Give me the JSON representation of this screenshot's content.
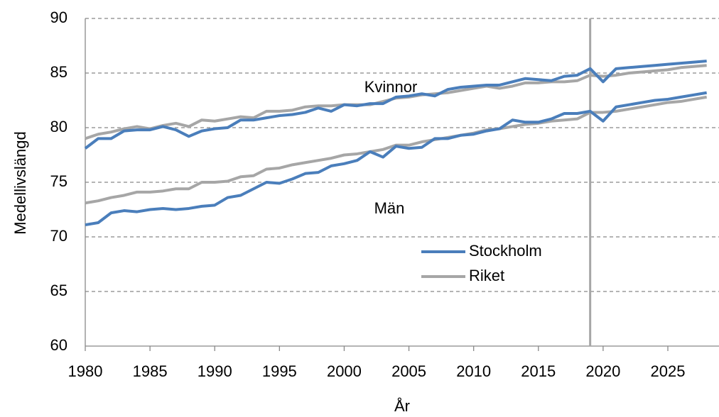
{
  "chart_data": {
    "type": "line",
    "ylabel": "Medellivslängd",
    "xlabel": "År",
    "annotations": [
      "Kvinnor",
      "Män"
    ],
    "x": [
      1980,
      1981,
      1982,
      1983,
      1984,
      1985,
      1986,
      1987,
      1988,
      1989,
      1990,
      1991,
      1992,
      1993,
      1994,
      1995,
      1996,
      1997,
      1998,
      1999,
      2000,
      2001,
      2002,
      2003,
      2004,
      2005,
      2006,
      2007,
      2008,
      2009,
      2010,
      2011,
      2012,
      2013,
      2014,
      2015,
      2016,
      2017,
      2018,
      2019,
      2020,
      2021,
      2022,
      2023,
      2024,
      2025,
      2026,
      2027,
      2028
    ],
    "xlim": [
      1980,
      2029
    ],
    "xticks": [
      1980,
      1985,
      1990,
      1995,
      2000,
      2005,
      2010,
      2015,
      2020,
      2025
    ],
    "ylim": [
      60,
      90
    ],
    "yticks": [
      60,
      65,
      70,
      75,
      80,
      85,
      90
    ],
    "grid": true,
    "vline": 2019,
    "legend": "lower-center",
    "series": [
      {
        "name": "Stockholm",
        "color": "#4a7ebb",
        "lines": [
          [
            78.1,
            79.0,
            79.0,
            79.7,
            79.8,
            79.8,
            80.1,
            79.8,
            79.2,
            79.7,
            79.9,
            80.0,
            80.7,
            80.7,
            80.9,
            81.1,
            81.2,
            81.4,
            81.8,
            81.5,
            82.1,
            82.0,
            82.2,
            82.2,
            82.8,
            82.9,
            83.1,
            82.9,
            83.5,
            83.7,
            83.8,
            83.9,
            83.9,
            84.2,
            84.5,
            84.4,
            84.3,
            84.7,
            84.8,
            85.4,
            84.2,
            85.4,
            85.5,
            85.6,
            85.7,
            85.8,
            85.9,
            86.0,
            86.1
          ],
          [
            71.1,
            71.3,
            72.2,
            72.4,
            72.3,
            72.5,
            72.6,
            72.5,
            72.6,
            72.8,
            72.9,
            73.6,
            73.8,
            74.4,
            75.0,
            74.9,
            75.3,
            75.8,
            75.9,
            76.5,
            76.7,
            77.0,
            77.8,
            77.3,
            78.3,
            78.1,
            78.2,
            79.0,
            79.0,
            79.3,
            79.4,
            79.7,
            79.9,
            80.7,
            80.5,
            80.5,
            80.8,
            81.3,
            81.3,
            81.5,
            80.6,
            81.9,
            82.1,
            82.3,
            82.5,
            82.6,
            82.8,
            83.0,
            83.2
          ]
        ]
      },
      {
        "name": "Riket",
        "color": "#a6a6a6",
        "lines": [
          [
            79.0,
            79.4,
            79.6,
            79.9,
            80.1,
            79.9,
            80.2,
            80.4,
            80.1,
            80.7,
            80.6,
            80.8,
            81.0,
            80.9,
            81.5,
            81.5,
            81.6,
            81.9,
            82.0,
            82.0,
            82.1,
            82.1,
            82.1,
            82.4,
            82.7,
            82.8,
            83.0,
            83.1,
            83.2,
            83.4,
            83.6,
            83.8,
            83.6,
            83.8,
            84.1,
            84.1,
            84.2,
            84.2,
            84.3,
            84.8,
            84.7,
            84.8,
            85.0,
            85.1,
            85.2,
            85.3,
            85.5,
            85.6,
            85.7
          ],
          [
            73.1,
            73.3,
            73.6,
            73.8,
            74.1,
            74.1,
            74.2,
            74.4,
            74.4,
            75.0,
            75.0,
            75.1,
            75.5,
            75.6,
            76.2,
            76.3,
            76.6,
            76.8,
            77.0,
            77.2,
            77.5,
            77.6,
            77.8,
            78.0,
            78.4,
            78.4,
            78.7,
            78.9,
            79.1,
            79.3,
            79.5,
            79.8,
            79.9,
            80.1,
            80.3,
            80.4,
            80.6,
            80.7,
            80.8,
            81.4,
            81.4,
            81.5,
            81.7,
            81.9,
            82.1,
            82.3,
            82.4,
            82.6,
            82.8
          ]
        ]
      }
    ]
  }
}
